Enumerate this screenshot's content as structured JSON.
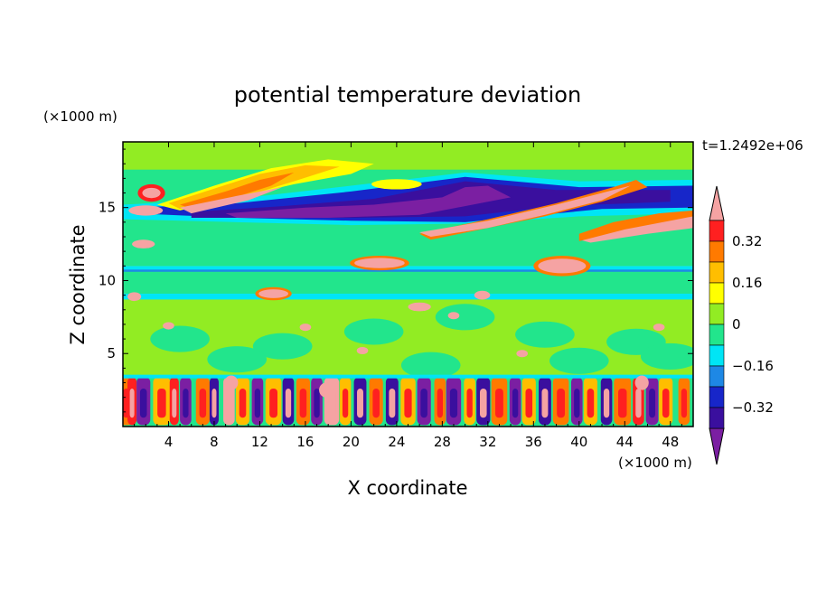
{
  "chart_data": {
    "type": "heatmap",
    "title": "potential temperature deviation",
    "xlabel": "X coordinate",
    "ylabel": "Z coordinate",
    "x_unit": "(×1000 m)",
    "y_unit": "(×1000 m)",
    "time_label": "t=1.2492e+06",
    "xlim": [
      0,
      50
    ],
    "ylim": [
      0,
      19.5
    ],
    "x_ticks": [
      4,
      8,
      12,
      16,
      20,
      24,
      28,
      32,
      36,
      40,
      44,
      48
    ],
    "y_ticks": [
      5,
      10,
      15
    ],
    "colorbar": {
      "levels": [
        -0.4,
        -0.32,
        -0.24,
        -0.16,
        -0.08,
        0,
        0.08,
        0.16,
        0.24,
        0.32,
        0.4
      ],
      "colors": [
        "#7b1fa2",
        "#3a0f9e",
        "#1726c9",
        "#1e88e5",
        "#00e5f5",
        "#22e58c",
        "#92ec23",
        "#ffff00",
        "#ffbe00",
        "#ff7a00",
        "#ff2020",
        "#f5a3a3"
      ],
      "labels": [
        "-0.32",
        "-0.16",
        "0",
        "0.16",
        "0.32"
      ],
      "under_color": "#7b1fa2",
      "over_color": "#f5a3a3"
    },
    "bands": [
      {
        "z_range": [
          17.6,
          19.5
        ],
        "dominant": "0.08"
      },
      {
        "z_range": [
          15.5,
          17.6
        ],
        "dominant": "0.08",
        "features": "warm tongue -0.08..0.4 near x=3-18"
      },
      {
        "z_range": [
          13.8,
          16.2
        ],
        "dominant": "-0.32",
        "features": "cold layer, warm streaks >0.4 rising x=20-48"
      },
      {
        "z_range": [
          11.0,
          13.8
        ],
        "dominant": "0.0"
      },
      {
        "z_range": [
          10.6,
          11.0
        ],
        "dominant": "-0.08"
      },
      {
        "z_range": [
          9.0,
          10.6
        ],
        "dominant": "0.0"
      },
      {
        "z_range": [
          3.5,
          9.0
        ],
        "dominant": "0.08"
      },
      {
        "z_range": [
          0.0,
          3.5
        ],
        "dominant": "mixed -0.4..0.4 convective cells"
      }
    ]
  }
}
